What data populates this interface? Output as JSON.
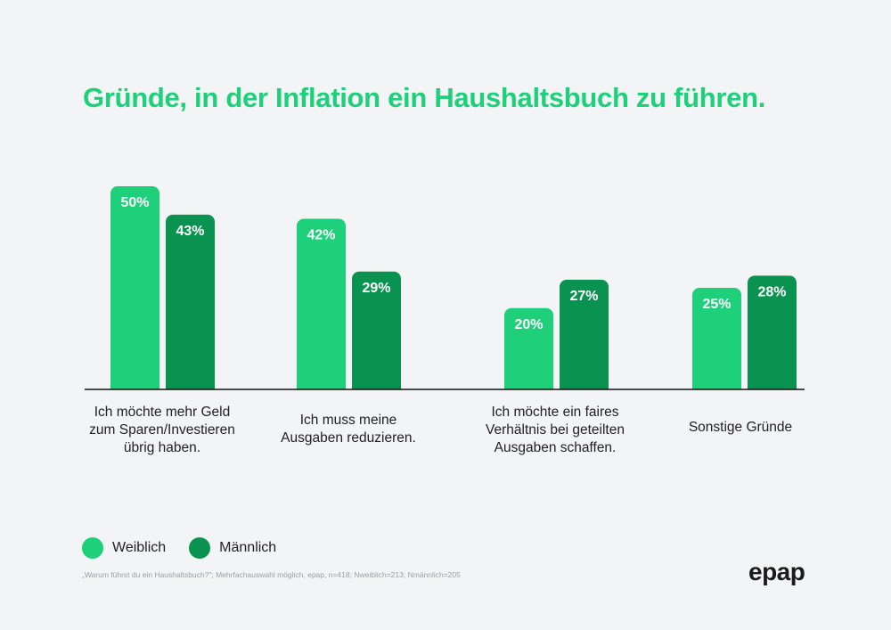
{
  "title": "Gründe, in der Inflation ein Haushaltsbuch zu führen.",
  "colors": {
    "weiblich": "#1ed07a",
    "maennlich": "#0a9350",
    "title": "#1ed07a",
    "axis": "#111111"
  },
  "chart_data": {
    "type": "bar",
    "title": "Gründe, in der Inflation ein Haushaltsbuch zu führen.",
    "categories": [
      "Ich möchte mehr Geld zum Sparen/Investieren übrig haben.",
      "Ich muss meine Ausgaben reduzieren.",
      "Ich möchte ein faires Verhältnis bei geteilten Ausgaben schaffen.",
      "Sonstige Gründe"
    ],
    "series": [
      {
        "name": "Weiblich",
        "values": [
          50,
          42,
          20,
          25
        ],
        "labels": [
          "50%",
          "42%",
          "20%",
          "25%"
        ]
      },
      {
        "name": "Männlich",
        "values": [
          43,
          29,
          27,
          28
        ],
        "labels": [
          "43%",
          "29%",
          "27%",
          "28%"
        ]
      }
    ],
    "ylim": [
      0,
      50
    ],
    "grid": false,
    "legend_position": "bottom-left"
  },
  "category_lines": [
    [
      "Ich möchte mehr Geld",
      "zum Sparen/Investieren",
      "übrig haben."
    ],
    [
      "Ich muss meine",
      "Ausgaben reduzieren."
    ],
    [
      "Ich möchte ein faires",
      "Verhältnis bei geteilten",
      "Ausgaben schaffen."
    ],
    [
      "Sonstige Gründe"
    ]
  ],
  "legend": {
    "weiblich": "Weiblich",
    "maennlich": "Männlich"
  },
  "footnote": "„Warum führst du ein Haushaltsbuch?\"; Mehrfachauswahl möglich, epap, n=418; Nweiblich=213; Nmännlich=205",
  "logo": "epap"
}
